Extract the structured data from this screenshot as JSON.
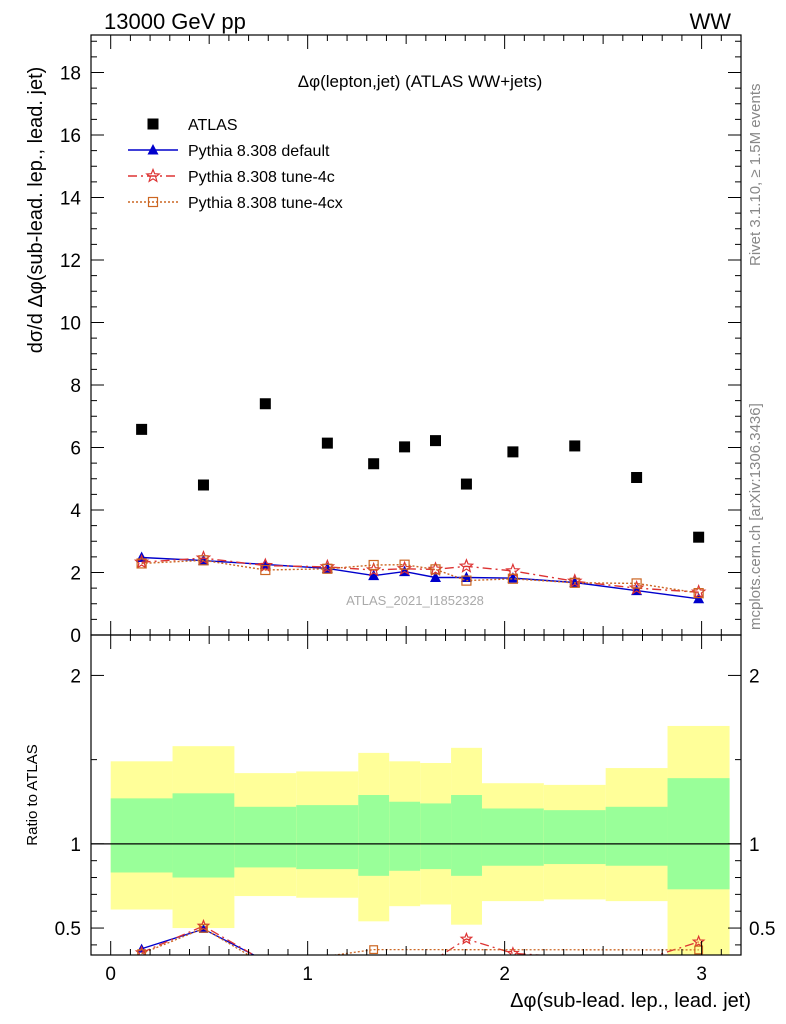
{
  "header": {
    "left": "13000 GeV pp",
    "right": "WW",
    "side_rivet": "Rivet 3.1.10, ≥ 1.5M events",
    "side_mcplots": "mcplots.cern.ch [arXiv:1306.3436]",
    "analysis_tag": "ATLAS_2021_I1852328"
  },
  "chart_data": [
    {
      "panel": "main",
      "type": "scatter",
      "title": "Δφ(lepton,jet) (ATLAS WW+jets)",
      "xlabel": "Δφ(sub-lead. lep., lead. jet)",
      "ylabel": "dσ/d Δφ(sub-lead. lep., lead. jet)",
      "xlim": [
        -0.1,
        3.2
      ],
      "ylim": [
        0,
        19.2
      ],
      "yticks": [
        0,
        2,
        4,
        6,
        8,
        10,
        12,
        14,
        16,
        18
      ],
      "legend_position": "top-left",
      "series": [
        {
          "name": "ATLAS",
          "color": "#000000",
          "marker": "filled-square",
          "x": [
            0.157,
            0.471,
            0.785,
            1.1,
            1.335,
            1.492,
            1.649,
            1.806,
            2.042,
            2.356,
            2.67,
            2.985
          ],
          "y": [
            6.58,
            4.8,
            7.4,
            6.14,
            5.48,
            6.02,
            6.22,
            4.83,
            5.86,
            6.05,
            5.04,
            3.13
          ]
        },
        {
          "name": "Pythia 8.308 default",
          "color": "#0000cc",
          "marker": "filled-triangle",
          "line": "solid",
          "x": [
            0.157,
            0.471,
            0.785,
            1.1,
            1.335,
            1.492,
            1.649,
            1.806,
            2.042,
            2.356,
            2.67,
            2.985
          ],
          "y": [
            2.48,
            2.38,
            2.26,
            2.13,
            1.9,
            2.03,
            1.84,
            1.84,
            1.82,
            1.68,
            1.42,
            1.16
          ]
        },
        {
          "name": "Pythia 8.308 tune-4c",
          "color": "#dd3333",
          "marker": "open-star",
          "line": "dash-dot",
          "x": [
            0.157,
            0.471,
            0.785,
            1.1,
            1.335,
            1.492,
            1.649,
            1.806,
            2.042,
            2.356,
            2.67,
            2.985
          ],
          "y": [
            2.33,
            2.46,
            2.22,
            2.18,
            2.08,
            2.12,
            2.1,
            2.2,
            2.05,
            1.72,
            1.5,
            1.37
          ]
        },
        {
          "name": "Pythia 8.308 tune-4cx",
          "color": "#cc6622",
          "marker": "open-square",
          "line": "dotted",
          "x": [
            0.157,
            0.471,
            0.785,
            1.1,
            1.335,
            1.492,
            1.649,
            1.806,
            2.042,
            2.356,
            2.67,
            2.985
          ],
          "y": [
            2.29,
            2.39,
            2.08,
            2.12,
            2.24,
            2.25,
            2.1,
            1.74,
            1.8,
            1.67,
            1.65,
            1.34
          ]
        }
      ]
    },
    {
      "panel": "ratio",
      "type": "area",
      "ylabel": "Ratio to ATLAS",
      "xlabel": "Δφ(sub-lead. lep., lead. jet)",
      "xlim": [
        -0.1,
        3.2
      ],
      "ylim": [
        0.34,
        2.24
      ],
      "yticks": [
        0.5,
        1,
        2
      ],
      "xticks": [
        0,
        1,
        2,
        3
      ],
      "reference_line": 1,
      "bands": {
        "bin_edges": [
          0.0,
          0.314,
          0.628,
          0.942,
          1.257,
          1.414,
          1.571,
          1.728,
          1.885,
          2.199,
          2.513,
          2.827,
          3.142
        ],
        "stat_syst_color": "#ffff99",
        "stat_color": "#99ff99",
        "outer_lo": [
          0.61,
          0.5,
          0.69,
          0.68,
          0.54,
          0.63,
          0.64,
          0.52,
          0.66,
          0.67,
          0.66,
          0.34
        ],
        "outer_hi": [
          1.49,
          1.58,
          1.42,
          1.43,
          1.54,
          1.49,
          1.48,
          1.57,
          1.36,
          1.35,
          1.45,
          1.7
        ],
        "inner_lo": [
          0.83,
          0.8,
          0.86,
          0.85,
          0.81,
          0.84,
          0.85,
          0.81,
          0.87,
          0.88,
          0.87,
          0.73
        ],
        "inner_hi": [
          1.27,
          1.3,
          1.22,
          1.23,
          1.29,
          1.25,
          1.24,
          1.29,
          1.21,
          1.2,
          1.22,
          1.39
        ]
      },
      "series": [
        {
          "name": "Pythia 8.308 default",
          "color": "#0000cc",
          "marker": "filled-triangle",
          "line": "solid",
          "x": [
            0.157,
            0.471,
            0.785
          ],
          "y": [
            0.377,
            0.494,
            0.305
          ]
        },
        {
          "name": "Pythia 8.308 tune-4c",
          "color": "#dd3333",
          "marker": "open-star",
          "line": "dash-dot",
          "x": [
            0.157,
            0.471,
            0.785,
            1.627,
            1.806,
            2.042,
            2.67,
            2.985
          ],
          "y": [
            0.354,
            0.512,
            0.3,
            0.3,
            0.435,
            0.35,
            0.3,
            0.418
          ]
        },
        {
          "name": "Pythia 8.308 tune-4cx",
          "color": "#cc6622",
          "marker": "open-square",
          "line": "dotted",
          "x": [
            0.157,
            0.471,
            0.785,
            1.335,
            2.985
          ],
          "y": [
            0.348,
            0.498,
            0.281,
            0.372,
            0.37
          ]
        }
      ]
    }
  ]
}
